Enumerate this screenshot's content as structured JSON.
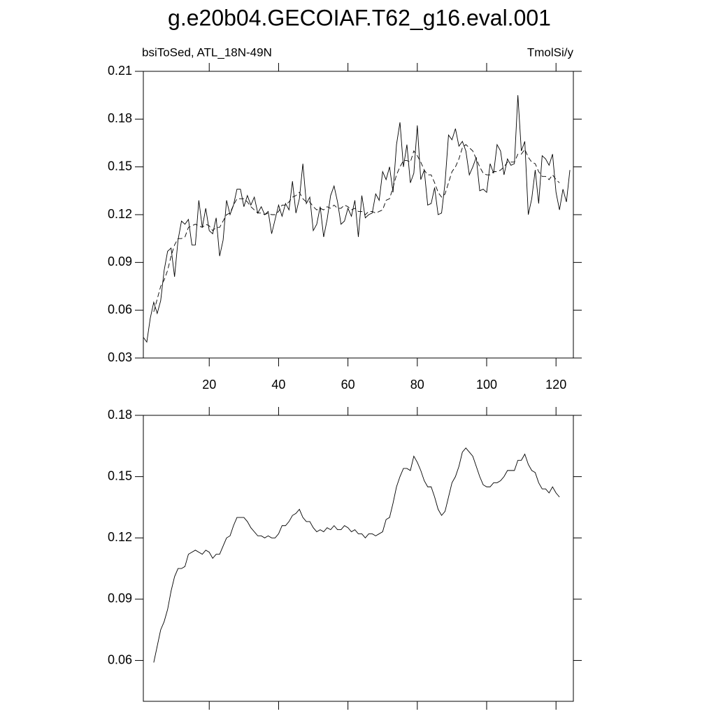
{
  "chart_data": [
    {
      "type": "line",
      "title": "g.e20b04.GECOIAF.T62_g16.eval.001",
      "subtitle": "bsiToSed, ATL_18N-49N",
      "units": "TmolSi/y",
      "x": [
        1,
        2,
        3,
        4,
        5,
        6,
        7,
        8,
        9,
        10,
        11,
        12,
        13,
        14,
        15,
        16,
        17,
        18,
        19,
        20,
        21,
        22,
        23,
        24,
        25,
        26,
        27,
        28,
        29,
        30,
        31,
        32,
        33,
        34,
        35,
        36,
        37,
        38,
        39,
        40,
        41,
        42,
        43,
        44,
        45,
        46,
        47,
        48,
        49,
        50,
        51,
        52,
        53,
        54,
        55,
        56,
        57,
        58,
        59,
        60,
        61,
        62,
        63,
        64,
        65,
        66,
        67,
        68,
        69,
        70,
        71,
        72,
        73,
        74,
        75,
        76,
        77,
        78,
        79,
        80,
        81,
        82,
        83,
        84,
        85,
        86,
        87,
        88,
        89,
        90,
        91,
        92,
        93,
        94,
        95,
        96,
        97,
        98,
        99,
        100,
        101,
        102,
        103,
        104,
        105,
        106,
        107,
        108,
        109,
        110,
        111,
        112,
        113,
        114,
        115,
        116,
        117,
        118,
        119,
        120,
        121,
        122,
        123,
        124
      ],
      "series": [
        {
          "color": "#000000",
          "linestyle": "solid",
          "values": [
            0.043,
            0.04,
            0.055,
            0.065,
            0.058,
            0.066,
            0.085,
            0.097,
            0.099,
            0.081,
            0.104,
            0.116,
            0.114,
            0.117,
            0.101,
            0.101,
            0.129,
            0.112,
            0.124,
            0.11,
            0.108,
            0.118,
            0.094,
            0.104,
            0.129,
            0.12,
            0.126,
            0.136,
            0.136,
            0.125,
            0.132,
            0.126,
            0.131,
            0.121,
            0.125,
            0.12,
            0.122,
            0.108,
            0.117,
            0.126,
            0.119,
            0.127,
            0.123,
            0.141,
            0.121,
            0.13,
            0.152,
            0.127,
            0.131,
            0.11,
            0.114,
            0.125,
            0.106,
            0.117,
            0.132,
            0.138,
            0.128,
            0.114,
            0.116,
            0.124,
            0.119,
            0.129,
            0.106,
            0.132,
            0.118,
            0.12,
            0.121,
            0.133,
            0.129,
            0.147,
            0.142,
            0.15,
            0.134,
            0.164,
            0.178,
            0.15,
            0.164,
            0.14,
            0.146,
            0.176,
            0.142,
            0.148,
            0.126,
            0.127,
            0.137,
            0.12,
            0.121,
            0.14,
            0.17,
            0.167,
            0.174,
            0.163,
            0.166,
            0.16,
            0.145,
            0.15,
            0.156,
            0.135,
            0.136,
            0.134,
            0.152,
            0.146,
            0.164,
            0.16,
            0.145,
            0.155,
            0.151,
            0.152,
            0.195,
            0.16,
            0.166,
            0.12,
            0.13,
            0.148,
            0.127,
            0.157,
            0.155,
            0.151,
            0.158,
            0.134,
            0.123,
            0.136,
            0.128,
            0.148
          ]
        },
        {
          "color": "#000000",
          "linestyle": "dashed",
          "values": [
            null,
            null,
            null,
            0.059,
            0.067,
            0.075,
            0.079,
            0.085,
            0.094,
            0.101,
            0.105,
            0.105,
            0.106,
            0.112,
            0.113,
            0.114,
            0.113,
            0.112,
            0.114,
            0.113,
            0.11,
            0.112,
            0.112,
            0.116,
            0.12,
            0.121,
            0.126,
            0.13,
            0.13,
            0.13,
            0.128,
            0.125,
            0.123,
            0.121,
            0.121,
            0.12,
            0.121,
            0.12,
            0.12,
            0.122,
            0.126,
            0.126,
            0.128,
            0.131,
            0.132,
            0.134,
            0.13,
            0.128,
            0.128,
            0.125,
            0.123,
            0.124,
            0.123,
            0.125,
            0.124,
            0.126,
            0.124,
            0.124,
            0.126,
            0.125,
            0.123,
            0.124,
            0.122,
            0.122,
            0.12,
            0.122,
            0.122,
            0.121,
            0.122,
            0.123,
            0.129,
            0.13,
            0.137,
            0.145,
            0.15,
            0.154,
            0.154,
            0.153,
            0.16,
            0.157,
            0.153,
            0.148,
            0.145,
            0.145,
            0.14,
            0.134,
            0.131,
            0.133,
            0.14,
            0.147,
            0.15,
            0.155,
            0.162,
            0.164,
            0.162,
            0.16,
            0.155,
            0.15,
            0.146,
            0.145,
            0.145,
            0.147,
            0.147,
            0.148,
            0.15,
            0.153,
            0.153,
            0.153,
            0.158,
            0.158,
            0.161,
            0.156,
            0.153,
            0.152,
            0.147,
            0.144,
            0.144,
            0.142,
            0.145,
            0.142,
            0.14,
            null,
            null,
            null
          ]
        }
      ],
      "xlim": [
        1,
        125
      ],
      "xticks": [
        20,
        40,
        60,
        80,
        100,
        120
      ],
      "ylim": [
        0.03,
        0.21
      ],
      "yticks": [
        0.03,
        0.06,
        0.09,
        0.12,
        0.15,
        0.18,
        0.21
      ]
    },
    {
      "type": "line",
      "x": [
        4,
        5,
        6,
        7,
        8,
        9,
        10,
        11,
        12,
        13,
        14,
        15,
        16,
        17,
        18,
        19,
        20,
        21,
        22,
        23,
        24,
        25,
        26,
        27,
        28,
        29,
        30,
        31,
        32,
        33,
        34,
        35,
        36,
        37,
        38,
        39,
        40,
        41,
        42,
        43,
        44,
        45,
        46,
        47,
        48,
        49,
        50,
        51,
        52,
        53,
        54,
        55,
        56,
        57,
        58,
        59,
        60,
        61,
        62,
        63,
        64,
        65,
        66,
        67,
        68,
        69,
        70,
        71,
        72,
        73,
        74,
        75,
        76,
        77,
        78,
        79,
        80,
        81,
        82,
        83,
        84,
        85,
        86,
        87,
        88,
        89,
        90,
        91,
        92,
        93,
        94,
        95,
        96,
        97,
        98,
        99,
        100,
        101,
        102,
        103,
        104,
        105,
        106,
        107,
        108,
        109,
        110,
        111,
        112,
        113,
        114,
        115,
        116,
        117,
        118,
        119,
        120,
        121
      ],
      "series": [
        {
          "color": "#000000",
          "linestyle": "solid",
          "values": [
            0.059,
            0.067,
            0.075,
            0.079,
            0.085,
            0.094,
            0.101,
            0.105,
            0.105,
            0.106,
            0.112,
            0.113,
            0.114,
            0.113,
            0.112,
            0.114,
            0.113,
            0.11,
            0.112,
            0.112,
            0.116,
            0.12,
            0.121,
            0.126,
            0.13,
            0.13,
            0.13,
            0.128,
            0.125,
            0.123,
            0.121,
            0.121,
            0.12,
            0.121,
            0.12,
            0.12,
            0.122,
            0.126,
            0.126,
            0.128,
            0.131,
            0.132,
            0.134,
            0.13,
            0.128,
            0.128,
            0.125,
            0.123,
            0.124,
            0.123,
            0.125,
            0.124,
            0.126,
            0.124,
            0.124,
            0.126,
            0.125,
            0.123,
            0.124,
            0.122,
            0.122,
            0.12,
            0.122,
            0.122,
            0.121,
            0.122,
            0.123,
            0.129,
            0.13,
            0.137,
            0.145,
            0.15,
            0.154,
            0.154,
            0.153,
            0.16,
            0.157,
            0.153,
            0.148,
            0.145,
            0.145,
            0.14,
            0.134,
            0.131,
            0.133,
            0.14,
            0.147,
            0.15,
            0.155,
            0.162,
            0.164,
            0.162,
            0.16,
            0.155,
            0.15,
            0.146,
            0.145,
            0.145,
            0.147,
            0.147,
            0.148,
            0.15,
            0.153,
            0.153,
            0.153,
            0.158,
            0.158,
            0.161,
            0.156,
            0.153,
            0.152,
            0.147,
            0.144,
            0.144,
            0.142,
            0.145,
            0.142,
            0.14
          ]
        }
      ],
      "xlim": [
        1,
        125
      ],
      "xticks": [
        20,
        40,
        60,
        80,
        100,
        120
      ],
      "xtick_labels": false,
      "ylim": [
        0.04,
        0.18
      ],
      "yticks": [
        0.06,
        0.09,
        0.12,
        0.15,
        0.18
      ]
    }
  ]
}
